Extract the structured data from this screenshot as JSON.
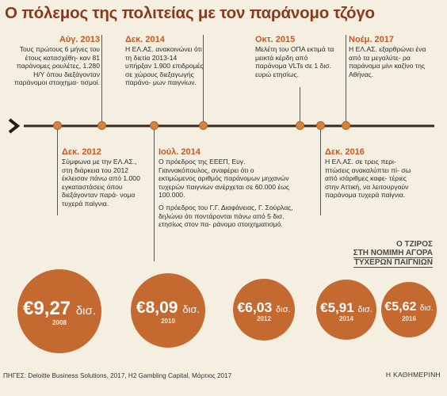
{
  "title": "Ο πόλεμος της πολιτείας με τον παράνομο τζόγο",
  "timeline_top": [
    {
      "date": "Αύγ. 2013",
      "text": "Τους πρώτους 6 μήνες του έτους κατασχέθη- καν 81 παράνομες ρουλέτες, 1.280 Η/Υ όπου διεξάγονταν παράνομοι στοιχημα- τισμοί."
    },
    {
      "date": "Δεκ. 2014",
      "text": "Η ΕΛ.ΑΣ. ανακοινώνει ότι τη διετία 2013-14 υπήρξαν 1.900 επιδρομές σε χώρους διεξαγωγής παράνο- μων παιγνίων."
    },
    {
      "date": "Οκτ. 2015",
      "text": "Μελέτη του ΟΠΑ εκτιμά τα μεικτά κέρδη από παράνομα VLTs σε 1 δισ. ευρώ ετησίως."
    },
    {
      "date": "Νοέμ. 2017",
      "text": "Η ΕΛ.ΑΣ. εξαρθρώνει ένα από τα μεγαλύτε- ρα παράνομα μίνι καζίνο της Αθήνας."
    }
  ],
  "timeline_bottom": [
    {
      "date": "Δεκ. 2012",
      "text": "Σύμφωνα με την ΕΛ.ΑΣ., στη διάρκεια του 2012 έκλεισαν πάνω από 1.000 εγκαταστάσεις όπου διεξάγονταν παρά- νομα τυχερά παίγνια."
    },
    {
      "date": "Ιούλ. 2014",
      "text": "Ο πρόεδρος της ΕΕΕΠ, Ευγ. Γιαννακόπουλος, αναφέρει ότι ο εκτιμώμενος αριθμός παράνομων μηχανών τυχερών παιγνίων ανέρχεται σε 60.000 έως 100.000.",
      "text2": "Ο πρόεδρος του Γ.Γ. Διαφάνειας, Γ. Σούρλας, δηλώνει ότι ποντάρονται πάνω από 5 δισ. ετησίως στον πα- ράνομο στοιχηματισμό."
    },
    {
      "date": "Δεκ. 2016",
      "text": "Η ΕΛ.ΑΣ. σε τρεις περι- πτώσεις ανακαλύπτει πί- σω από ισάριθμες καφε- τέριες στην Αττική, να λειτουργούν παράνομα τυχερά παίγνια."
    }
  ],
  "turnover": {
    "title_line1": "Ο ΤΖΙΡΟΣ",
    "title_line2": "ΣΤΗ ΝΟΜΙΜΗ ΑΓΟΡΑ",
    "title_line3": "ΤΥΧΕΡΩΝ ΠΑΙΓΝΙΩΝ",
    "items": [
      {
        "amount": "€9,27",
        "unit": "δισ.",
        "year": "2008",
        "value": 9.27
      },
      {
        "amount": "€8,09",
        "unit": "δισ.",
        "year": "2010",
        "value": 8.09
      },
      {
        "amount": "€6,03",
        "unit": "δισ.",
        "year": "2012",
        "value": 6.03
      },
      {
        "amount": "€5,91",
        "unit": "δισ.",
        "year": "2014",
        "value": 5.91
      },
      {
        "amount": "€5,62",
        "unit": "δισ.",
        "year": "2016",
        "value": 5.62
      }
    ]
  },
  "source": "ΠΗΓΕΣ: Deloitte Business Solutions, 2017, H2 Gambling Capital, Μάρτιος 2017",
  "brand": "Η ΚΑΘΗΜΕΡΙΝΗ",
  "colors": {
    "title": "#8a3a1c",
    "accent": "#c25a21",
    "bubble": "#c4692f",
    "background": "#f5efe2"
  }
}
